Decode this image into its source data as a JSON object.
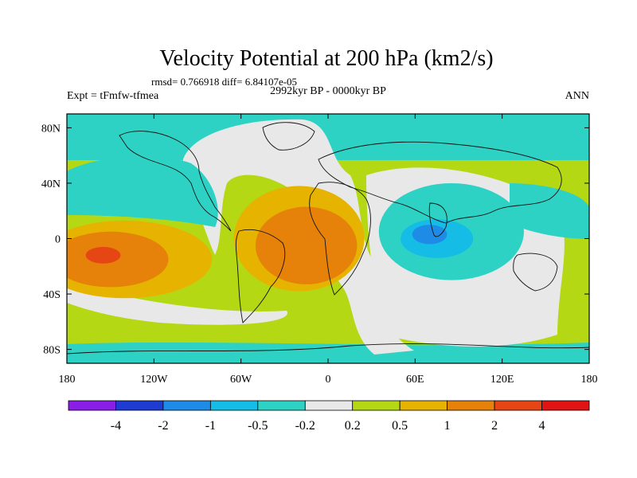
{
  "chart_data": {
    "type": "contour-map",
    "title": "Velocity Potential at 200 hPa (km2/s)",
    "stats_line": "rmsd= 0.766918 diff= 6.84107e-05",
    "left_label": "Expt = tFmfw-tfmea",
    "center_label": "2992kyr BP - 0000kyr BP",
    "right_label": "ANN",
    "x_axis": {
      "range": [
        -180,
        180
      ],
      "ticks": [
        -180,
        -120,
        -60,
        0,
        60,
        120,
        180
      ],
      "tick_labels": [
        "180",
        "120W",
        "60W",
        "0",
        "60E",
        "120E",
        "180"
      ]
    },
    "y_axis": {
      "range": [
        -90,
        90
      ],
      "ticks": [
        -80,
        -40,
        0,
        40,
        80
      ],
      "tick_labels": [
        "80S",
        "40S",
        "0",
        "40N",
        "80N"
      ]
    },
    "colorbar": {
      "colors": [
        "#8a1ee6",
        "#1e3cd2",
        "#1e8ce6",
        "#14bce6",
        "#2ed2c4",
        "#e8e8e8",
        "#b4d814",
        "#e6b400",
        "#e6820a",
        "#e64614",
        "#e01414"
      ],
      "labels": [
        "-4",
        "-2",
        "-1",
        "-0.5",
        "-0.2",
        "0.2",
        "0.5",
        "1",
        "2",
        "4"
      ]
    },
    "regions": [
      {
        "name": "n-pacific-negative",
        "level": -0.5,
        "lon": -125,
        "lat": 35,
        "rlon": 35,
        "rlat": 14
      },
      {
        "name": "c-pacific-positive",
        "level": 0.5,
        "lon": -140,
        "lat": -15,
        "rlon": 60,
        "rlat": 28
      },
      {
        "name": "c-pacific-positive-1",
        "level": 1,
        "lon": -150,
        "lat": -15,
        "rlon": 40,
        "rlat": 20
      },
      {
        "name": "c-pacific-positive-2",
        "level": 2,
        "lon": -155,
        "lat": -12,
        "rlon": 12,
        "rlat": 6
      },
      {
        "name": "atlantic-positive",
        "level": 0.5,
        "lon": -20,
        "lat": 0,
        "rlon": 45,
        "rlat": 38
      },
      {
        "name": "atlantic-positive-1",
        "level": 1,
        "lon": -15,
        "lat": -5,
        "rlon": 35,
        "rlat": 28
      },
      {
        "name": "indian-negative",
        "level": -0.5,
        "lon": 85,
        "lat": 5,
        "rlon": 50,
        "rlat": 35
      },
      {
        "name": "indian-negative-1",
        "level": -1,
        "lon": 75,
        "lat": 0,
        "rlon": 25,
        "rlat": 14
      },
      {
        "name": "indian-negative-2",
        "level": -2,
        "lon": 70,
        "lat": 3,
        "rlon": 12,
        "rlat": 7
      }
    ]
  }
}
